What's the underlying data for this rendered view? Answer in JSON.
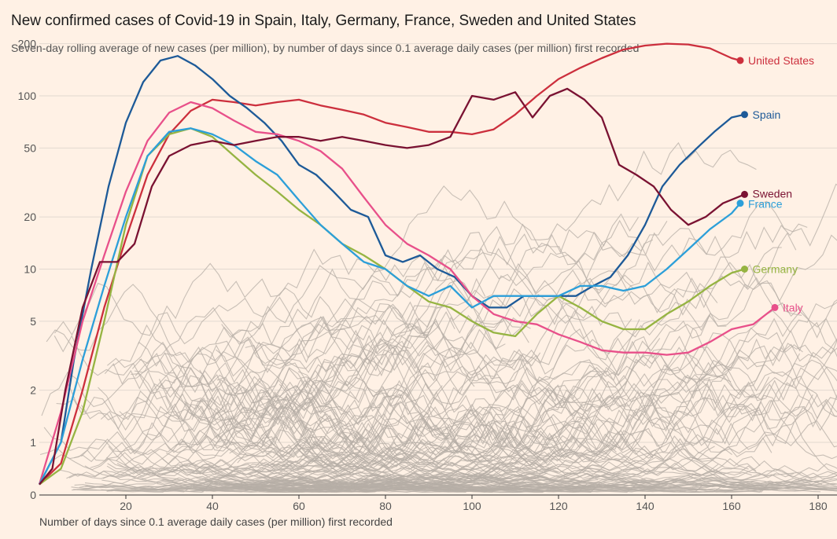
{
  "chart_data": {
    "type": "line",
    "title": "New confirmed cases of Covid-19 in Spain, Italy, Germany, France, Sweden and United States",
    "subtitle": "Seven-day rolling average of new cases (per million), by number of days since 0.1 average daily cases (per million) first recorded",
    "xlabel": "Number of days since 0.1 average daily cases (per million) first recorded",
    "ylabel": "",
    "xlim": [
      0,
      185
    ],
    "ylim": [
      0,
      200
    ],
    "y_scale": "symlog",
    "x_ticks": [
      20,
      40,
      60,
      80,
      100,
      120,
      140,
      160,
      180
    ],
    "y_ticks": [
      0,
      1,
      2,
      5,
      10,
      20,
      50,
      100,
      200
    ],
    "grid": "horizontal",
    "background_series_color": "#b6ada5",
    "series": [
      {
        "name": "United States",
        "color": "#cc2f3d",
        "x": [
          0,
          5,
          10,
          15,
          20,
          25,
          30,
          35,
          40,
          45,
          50,
          55,
          60,
          65,
          70,
          75,
          80,
          85,
          90,
          95,
          100,
          105,
          110,
          115,
          120,
          125,
          130,
          135,
          140,
          145,
          150,
          155,
          160,
          162
        ],
        "y": [
          0.2,
          0.6,
          2,
          6,
          15,
          35,
          60,
          82,
          95,
          92,
          88,
          92,
          95,
          88,
          83,
          78,
          70,
          66,
          62,
          62,
          60,
          64,
          78,
          100,
          125,
          145,
          165,
          185,
          195,
          200,
          198,
          188,
          165,
          160
        ]
      },
      {
        "name": "Spain",
        "color": "#1d5a98",
        "x": [
          0,
          5,
          8,
          12,
          16,
          20,
          24,
          28,
          32,
          36,
          40,
          44,
          48,
          52,
          56,
          60,
          64,
          68,
          72,
          76,
          80,
          84,
          88,
          92,
          96,
          100,
          104,
          108,
          112,
          116,
          120,
          124,
          128,
          132,
          136,
          140,
          144,
          148,
          152,
          156,
          160,
          163
        ],
        "y": [
          0.2,
          1,
          3,
          10,
          30,
          70,
          120,
          160,
          170,
          150,
          125,
          100,
          85,
          70,
          55,
          40,
          35,
          28,
          22,
          20,
          12,
          11,
          12,
          10,
          9,
          7,
          6,
          6,
          7,
          7,
          7,
          7,
          8,
          9,
          12,
          18,
          30,
          40,
          50,
          62,
          75,
          78
        ]
      },
      {
        "name": "Italy",
        "color": "#e8508a",
        "x": [
          0,
          5,
          10,
          15,
          20,
          25,
          30,
          35,
          40,
          45,
          50,
          55,
          60,
          65,
          70,
          75,
          80,
          85,
          90,
          95,
          100,
          105,
          110,
          115,
          120,
          125,
          130,
          135,
          140,
          145,
          150,
          155,
          160,
          165,
          170
        ],
        "y": [
          0.2,
          1.5,
          5,
          12,
          28,
          55,
          80,
          92,
          85,
          72,
          62,
          60,
          55,
          48,
          38,
          26,
          18,
          14,
          12,
          10,
          7,
          5.5,
          5,
          4.8,
          4.2,
          3.8,
          3.4,
          3.3,
          3.3,
          3.2,
          3.3,
          3.8,
          4.5,
          4.8,
          6
        ]
      },
      {
        "name": "Germany",
        "color": "#96b442",
        "x": [
          0,
          5,
          10,
          15,
          20,
          25,
          30,
          35,
          40,
          45,
          50,
          55,
          60,
          65,
          70,
          75,
          80,
          85,
          90,
          95,
          100,
          105,
          110,
          115,
          120,
          125,
          130,
          135,
          140,
          145,
          150,
          155,
          160,
          163
        ],
        "y": [
          0.2,
          0.5,
          1.5,
          5,
          18,
          45,
          60,
          65,
          58,
          45,
          35,
          28,
          22,
          18,
          14,
          12,
          10,
          8,
          6.5,
          6,
          5,
          4.3,
          4.1,
          5.5,
          7,
          6,
          5,
          4.5,
          4.5,
          5.5,
          6.5,
          8,
          9.5,
          10
        ]
      },
      {
        "name": "France",
        "color": "#2c9fd9",
        "x": [
          0,
          5,
          10,
          15,
          20,
          25,
          30,
          35,
          40,
          45,
          50,
          55,
          60,
          65,
          70,
          75,
          80,
          85,
          90,
          95,
          100,
          105,
          110,
          115,
          120,
          125,
          130,
          135,
          140,
          145,
          150,
          155,
          160,
          162
        ],
        "y": [
          0.2,
          1,
          3,
          8,
          20,
          45,
          62,
          65,
          60,
          52,
          42,
          35,
          25,
          18,
          14,
          11,
          10,
          8,
          7,
          8,
          6,
          7,
          7,
          7,
          7,
          8,
          8,
          7.5,
          8,
          10,
          13,
          17,
          21,
          24
        ]
      },
      {
        "name": "Sweden",
        "color": "#7a1232",
        "x": [
          0,
          3,
          6,
          10,
          14,
          18,
          22,
          26,
          30,
          35,
          40,
          45,
          50,
          55,
          60,
          65,
          70,
          75,
          80,
          85,
          90,
          95,
          100,
          105,
          110,
          114,
          118,
          122,
          126,
          130,
          134,
          138,
          142,
          146,
          150,
          154,
          158,
          163
        ],
        "y": [
          0.2,
          0.5,
          2,
          6,
          11,
          11,
          14,
          30,
          45,
          52,
          55,
          52,
          55,
          58,
          58,
          55,
          58,
          55,
          52,
          50,
          52,
          58,
          100,
          95,
          105,
          75,
          100,
          110,
          95,
          75,
          40,
          35,
          30,
          22,
          18,
          20,
          24,
          27
        ]
      }
    ],
    "series_end_labels": [
      "United States",
      "Spain",
      "Sweden",
      "France",
      "Germany",
      "Italy"
    ]
  }
}
